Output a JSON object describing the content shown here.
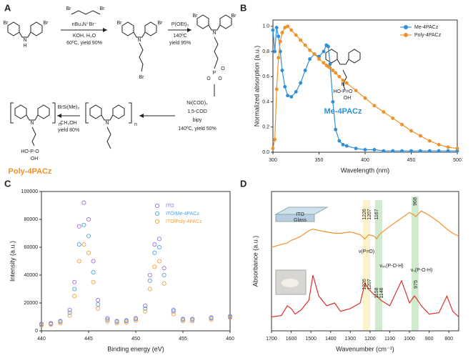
{
  "panels": [
    "A",
    "B",
    "C",
    "D"
  ],
  "scheme": {
    "texts": [
      "Br",
      "Br",
      "N",
      "H",
      "Br",
      "Br",
      "nBu₄N⁺Br⁻",
      "KOH, H₂O",
      "60ºC, yield 90%",
      "Br",
      "Br",
      "N",
      "Br",
      "P(OEt)₃",
      "140ºC",
      "yield 95%",
      "Br",
      "Br",
      "N",
      "P",
      "O",
      "O",
      "O",
      "Ni(COD)₂",
      "1,5-COD",
      "bipy",
      "140ºC, yield 50%",
      "N",
      "n",
      "BrSi(Me)₃",
      "CH₃OH",
      "yield 80%",
      "N",
      "n",
      "HO-P-O",
      "OH",
      "Poly-4PACz"
    ]
  },
  "chart_data": [
    {
      "type": "line",
      "markers": true,
      "xlabel": "Wavelength (nm)",
      "ylabel": "Normalized absorption (a.u.)",
      "x": [
        300,
        302,
        304,
        306,
        308,
        310,
        313,
        316,
        320,
        325,
        330,
        335,
        340,
        345,
        350,
        355,
        358,
        360,
        362,
        365,
        368,
        372,
        376,
        380,
        390,
        400,
        410,
        420,
        430,
        440,
        450,
        460,
        470,
        480,
        490,
        500
      ],
      "series": [
        {
          "name": "Me-4PACz",
          "color": "#2f8fd8",
          "values": [
            0.97,
            0.8,
            0.99,
            0.92,
            0.8,
            0.65,
            0.52,
            0.45,
            0.44,
            0.48,
            0.55,
            0.65,
            0.74,
            0.78,
            0.76,
            0.8,
            0.85,
            0.84,
            0.7,
            0.4,
            0.18,
            0.09,
            0.06,
            0.05,
            0.03,
            0.02,
            0.02,
            0.01,
            0.01,
            0.01,
            0.01,
            0.01,
            0.01,
            0.01,
            0.01,
            0.01
          ]
        },
        {
          "name": "Poly-4PACz",
          "color": "#f0922b",
          "values": [
            0.03,
            0.1,
            0.5,
            0.75,
            0.88,
            0.95,
            0.99,
            1.0,
            0.97,
            0.93,
            0.89,
            0.85,
            0.81,
            0.78,
            0.74,
            0.71,
            0.69,
            0.68,
            0.67,
            0.65,
            0.63,
            0.6,
            0.57,
            0.55,
            0.49,
            0.43,
            0.37,
            0.32,
            0.27,
            0.22,
            0.17,
            0.13,
            0.09,
            0.06,
            0.04,
            0.03
          ]
        }
      ],
      "xlim": [
        300,
        500
      ],
      "xticks": [
        300,
        350,
        400,
        450,
        500
      ],
      "ylim": [
        0,
        1.05
      ],
      "yticks": [
        {
          "value": 0,
          "label": "0.0"
        },
        0.2,
        0.4,
        0.6,
        0.8,
        {
          "value": 1,
          "label": "1.0"
        }
      ],
      "legend": "upper right",
      "annotations": [
        "N",
        "HO-P=O",
        "OH",
        "Me-4PACz"
      ]
    },
    {
      "type": "scatter",
      "xlabel": "Binding energy (eV)",
      "ylabel": "Intensity (a.u.)",
      "x": [
        440,
        441,
        442,
        443,
        443.5,
        444,
        444.5,
        445,
        445.5,
        446,
        447,
        448,
        449,
        450,
        451,
        451.5,
        452,
        452.5,
        453,
        454,
        455,
        456,
        458,
        460
      ],
      "series": [
        {
          "name": "ITO",
          "color": "#9b6fd6",
          "values": [
            5000,
            5500,
            7000,
            15000,
            35000,
            75000,
            92000,
            80000,
            50000,
            22000,
            9000,
            7000,
            7500,
            9000,
            18000,
            40000,
            62000,
            66000,
            45000,
            15000,
            8500,
            8500,
            9500,
            10500
          ]
        },
        {
          "name": "ITO/Me-4PACz",
          "color": "#4fa3de",
          "values": [
            4500,
            5000,
            6500,
            13000,
            30000,
            62000,
            76000,
            68000,
            42000,
            19000,
            8000,
            6500,
            7000,
            8500,
            16000,
            36000,
            56000,
            60000,
            40000,
            14000,
            8000,
            8000,
            9000,
            10000
          ]
        },
        {
          "name": "ITO/Poly-4PACz",
          "color": "#f0a040",
          "values": [
            4000,
            4500,
            5500,
            11000,
            25000,
            50000,
            62000,
            56000,
            35000,
            16000,
            7000,
            5500,
            6000,
            7500,
            14000,
            30000,
            46000,
            50000,
            34000,
            12000,
            7000,
            7000,
            8000,
            9500
          ]
        }
      ],
      "xlim": [
        440,
        460
      ],
      "xticks": [
        440,
        445,
        450,
        455,
        460
      ],
      "ylim": [
        0,
        100000
      ],
      "yticks": [
        0,
        20000,
        40000,
        60000,
        80000,
        100000
      ],
      "legend": "upper right"
    },
    {
      "type": "line",
      "xlabel": "Wavenumber (cm⁻¹)",
      "ylabel": "Absorbance (a.u.)",
      "x": [
        1700,
        1650,
        1620,
        1600,
        1580,
        1550,
        1510,
        1490,
        1460,
        1420,
        1380,
        1350,
        1300,
        1250,
        1226,
        1207,
        1180,
        1167,
        1158,
        1146,
        1100,
        1050,
        1040,
        1000,
        975,
        968,
        940,
        900,
        850,
        810,
        780,
        750
      ],
      "series": [
        {
          "color": "#f0922b",
          "values": [
            6.0,
            6.2,
            6.3,
            6.5,
            6.6,
            6.8,
            7.2,
            7.3,
            7.2,
            7.1,
            7.0,
            7.0,
            7.1,
            6.9,
            6.6,
            6.9,
            6.8,
            6.6,
            6.8,
            7.0,
            7.5,
            8.0,
            8.1,
            8.5,
            8.3,
            8.2,
            8.6,
            8.3,
            7.8,
            7.3,
            7.0,
            6.8
          ]
        },
        {
          "color": "#d9302a",
          "values": [
            1.0,
            1.1,
            1.8,
            1.6,
            1.2,
            1.5,
            2.2,
            4.0,
            2.5,
            1.8,
            2.0,
            1.4,
            1.6,
            2.0,
            3.4,
            3.0,
            2.6,
            2.5,
            2.4,
            2.2,
            1.8,
            3.3,
            3.6,
            2.0,
            2.5,
            2.4,
            1.8,
            1.2,
            1.3,
            2.5,
            1.4,
            1.0
          ]
        }
      ],
      "xlim": [
        1700,
        750
      ],
      "xticks": [
        1700,
        1600,
        1500,
        1400,
        1300,
        1200,
        1100,
        1000,
        900,
        800
      ],
      "ylim": [
        0,
        10
      ],
      "annotations": [
        "1226",
        "1207",
        "1167",
        "968",
        "ν(P=O)",
        "νₐₛ(P-O-H)",
        "νₛ(P-O-H)",
        "1226",
        "1207",
        "1158",
        "1146",
        "975",
        "ITO",
        "Glass"
      ]
    }
  ]
}
